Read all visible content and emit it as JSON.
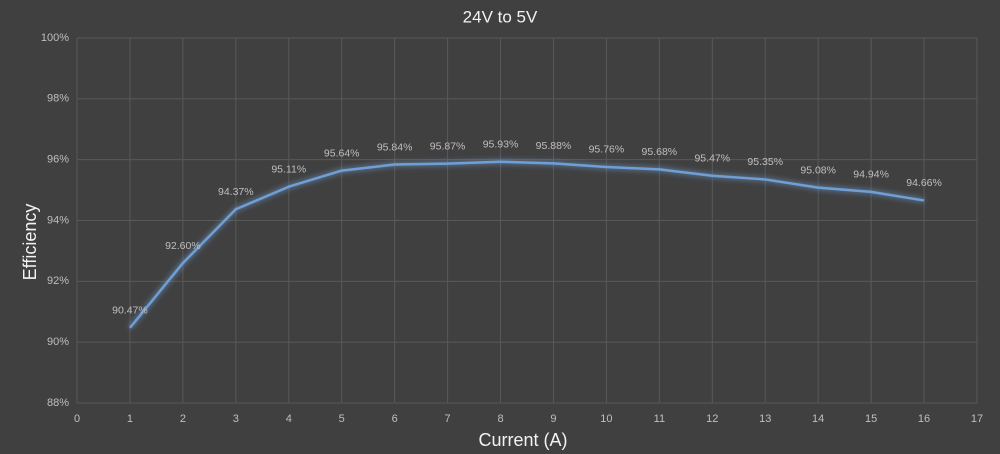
{
  "chart_data": {
    "type": "line",
    "title": "24V to 5V",
    "x_label": "Current (A)",
    "y_label": "Efficiency",
    "x": [
      1,
      2,
      3,
      4,
      5,
      6,
      7,
      8,
      9,
      10,
      11,
      12,
      13,
      14,
      15,
      16
    ],
    "values": [
      90.47,
      92.6,
      94.37,
      95.11,
      95.64,
      95.84,
      95.87,
      95.93,
      95.88,
      95.76,
      95.68,
      95.47,
      95.35,
      95.08,
      94.94,
      94.66
    ],
    "value_labels": [
      "90.47%",
      "92.60%",
      "94.37%",
      "95.11%",
      "95.64%",
      "95.84%",
      "95.87%",
      "95.93%",
      "95.88%",
      "95.76%",
      "95.68%",
      "95.47%",
      "95.35%",
      "95.08%",
      "94.94%",
      "94.66%"
    ],
    "color": "#6f9fd6",
    "xlim": [
      0,
      17
    ],
    "xticks": [
      0,
      1,
      2,
      3,
      4,
      5,
      6,
      7,
      8,
      9,
      10,
      11,
      12,
      13,
      14,
      15,
      16,
      17
    ],
    "ylim": [
      88,
      100
    ],
    "yticks": [
      {
        "value": 88,
        "label": "88%"
      },
      {
        "value": 90,
        "label": "90%"
      },
      {
        "value": 92,
        "label": "92%"
      },
      {
        "value": 94,
        "label": "94%"
      },
      {
        "value": 96,
        "label": "96%"
      },
      {
        "value": 98,
        "label": "98%"
      },
      {
        "value": 100,
        "label": "100%"
      }
    ],
    "grid": true
  }
}
